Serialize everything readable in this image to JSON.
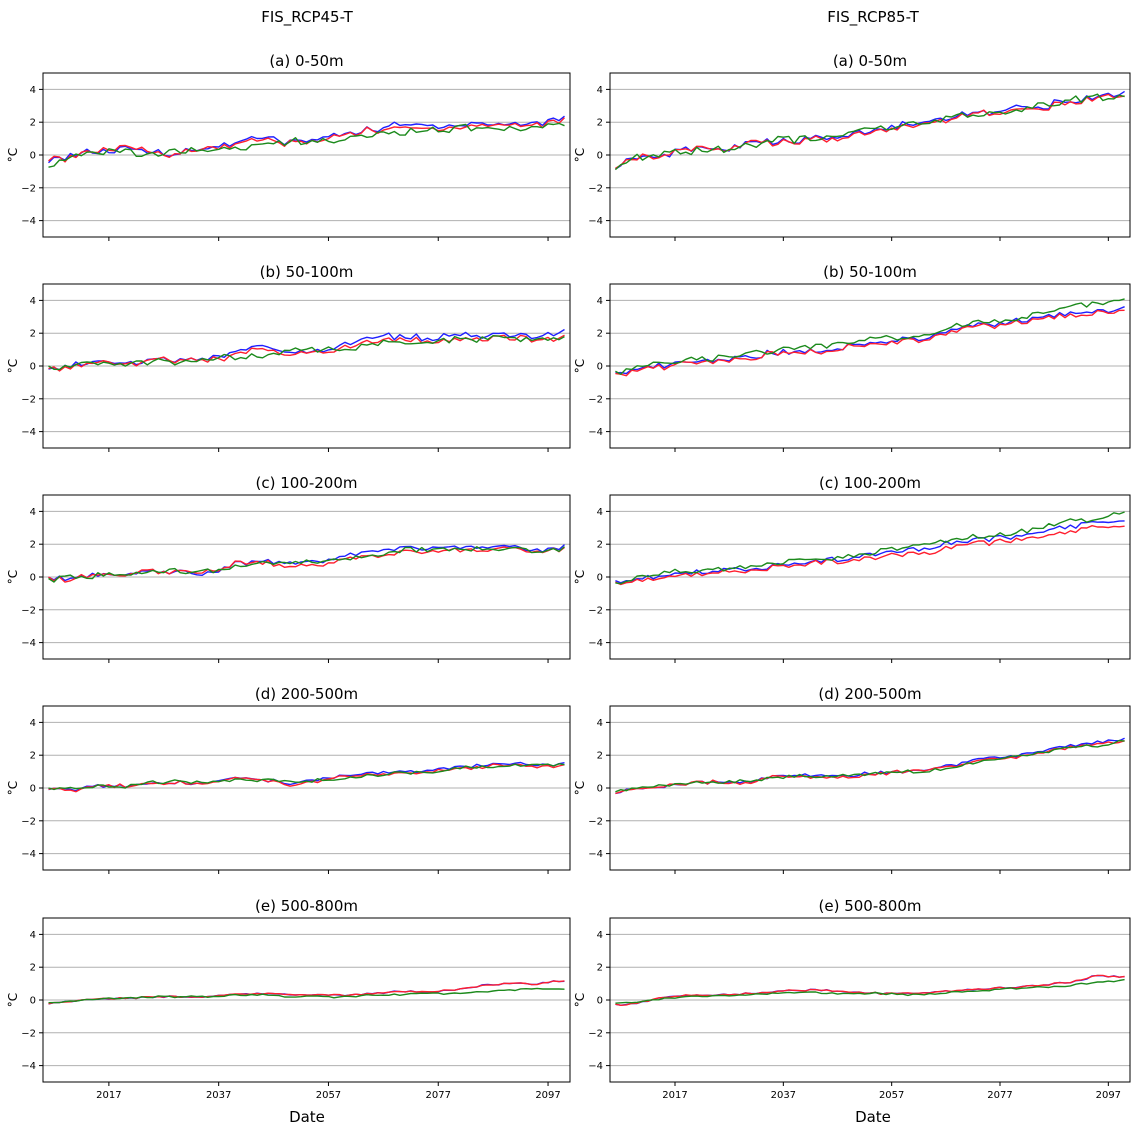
{
  "figure": {
    "columns": [
      "FIS_RCP45-T",
      "FIS_RCP85-T"
    ],
    "xlabel": "Date",
    "ylabel": "°C",
    "xticks": [
      "2017",
      "2037",
      "2057",
      "2077",
      "2097"
    ],
    "yticks": [
      "4",
      "2",
      "0",
      "−2",
      "−4"
    ]
  },
  "colors": {
    "blue": "#1f1fff",
    "red": "#ff1f2f",
    "green": "#1c8a1c"
  },
  "chart_data": [
    {
      "type": "line",
      "title": "(a) 0-50m",
      "column": "FIS_RCP45-T",
      "xlabel": "",
      "ylabel": "°C",
      "xlim": [
        2005,
        2101
      ],
      "ylim": [
        -5,
        5
      ],
      "grid": true,
      "trend": [
        [
          2006,
          -0.4,
          -0.3,
          -0.7
        ],
        [
          2010,
          0.0,
          -0.1,
          -0.1
        ],
        [
          2015,
          0.2,
          0.3,
          0.2
        ],
        [
          2020,
          0.3,
          0.4,
          0.2
        ],
        [
          2025,
          0.2,
          0.2,
          0.1
        ],
        [
          2030,
          0.1,
          0.1,
          0.2
        ],
        [
          2035,
          0.4,
          0.4,
          0.3
        ],
        [
          2040,
          0.8,
          0.7,
          0.5
        ],
        [
          2045,
          1.0,
          0.9,
          0.6
        ],
        [
          2050,
          0.8,
          0.7,
          0.8
        ],
        [
          2055,
          0.9,
          0.8,
          0.8
        ],
        [
          2060,
          1.4,
          1.3,
          1.1
        ],
        [
          2065,
          1.6,
          1.5,
          1.2
        ],
        [
          2070,
          1.8,
          1.6,
          1.4
        ],
        [
          2075,
          1.8,
          1.6,
          1.5
        ],
        [
          2080,
          1.9,
          1.7,
          1.6
        ],
        [
          2085,
          1.9,
          1.8,
          1.6
        ],
        [
          2090,
          1.9,
          1.8,
          1.6
        ],
        [
          2095,
          1.9,
          1.8,
          1.7
        ],
        [
          2100,
          2.3,
          2.2,
          1.8
        ]
      ]
    },
    {
      "type": "line",
      "title": "(a) 0-50m",
      "column": "FIS_RCP85-T",
      "xlabel": "",
      "ylabel": "°C",
      "xlim": [
        2005,
        2101
      ],
      "ylim": [
        -5,
        5
      ],
      "grid": true,
      "trend": [
        [
          2006,
          -0.8,
          -0.7,
          -0.9
        ],
        [
          2010,
          -0.2,
          -0.2,
          -0.1
        ],
        [
          2015,
          0.1,
          0.1,
          0.2
        ],
        [
          2020,
          0.3,
          0.3,
          0.2
        ],
        [
          2025,
          0.4,
          0.4,
          0.3
        ],
        [
          2030,
          0.6,
          0.6,
          0.5
        ],
        [
          2035,
          0.8,
          0.8,
          0.9
        ],
        [
          2040,
          0.9,
          0.9,
          0.9
        ],
        [
          2045,
          1.0,
          0.9,
          1.2
        ],
        [
          2050,
          1.3,
          1.2,
          1.4
        ],
        [
          2055,
          1.6,
          1.5,
          1.7
        ],
        [
          2060,
          1.8,
          1.7,
          1.9
        ],
        [
          2065,
          2.0,
          1.9,
          2.1
        ],
        [
          2070,
          2.4,
          2.3,
          2.4
        ],
        [
          2075,
          2.6,
          2.5,
          2.6
        ],
        [
          2080,
          2.8,
          2.7,
          2.8
        ],
        [
          2085,
          3.0,
          2.9,
          3.1
        ],
        [
          2090,
          3.3,
          3.2,
          3.4
        ],
        [
          2095,
          3.5,
          3.4,
          3.5
        ],
        [
          2100,
          3.8,
          3.6,
          3.6
        ]
      ]
    },
    {
      "type": "line",
      "title": "(b) 50-100m",
      "column": "FIS_RCP45-T",
      "xlabel": "",
      "ylabel": "°C",
      "xlim": [
        2005,
        2101
      ],
      "ylim": [
        -5,
        5
      ],
      "grid": true,
      "trend": [
        [
          2006,
          -0.3,
          -0.3,
          -0.2
        ],
        [
          2010,
          0.0,
          -0.1,
          0.1
        ],
        [
          2015,
          0.3,
          0.3,
          0.3
        ],
        [
          2020,
          0.2,
          0.1,
          0.1
        ],
        [
          2025,
          0.4,
          0.4,
          0.3
        ],
        [
          2030,
          0.3,
          0.3,
          0.3
        ],
        [
          2035,
          0.4,
          0.3,
          0.4
        ],
        [
          2040,
          0.9,
          0.7,
          0.5
        ],
        [
          2045,
          1.2,
          1.0,
          0.6
        ],
        [
          2050,
          0.9,
          0.8,
          1.0
        ],
        [
          2055,
          0.9,
          0.8,
          0.9
        ],
        [
          2060,
          1.4,
          1.2,
          1.1
        ],
        [
          2065,
          1.8,
          1.5,
          1.3
        ],
        [
          2070,
          1.8,
          1.6,
          1.5
        ],
        [
          2075,
          1.7,
          1.5,
          1.4
        ],
        [
          2080,
          1.9,
          1.6,
          1.7
        ],
        [
          2085,
          1.9,
          1.7,
          1.6
        ],
        [
          2090,
          1.9,
          1.7,
          1.7
        ],
        [
          2095,
          1.8,
          1.6,
          1.6
        ],
        [
          2100,
          2.1,
          1.8,
          1.7
        ]
      ]
    },
    {
      "type": "line",
      "title": "(b) 50-100m",
      "column": "FIS_RCP85-T",
      "xlabel": "",
      "ylabel": "°C",
      "xlim": [
        2005,
        2101
      ],
      "ylim": [
        -5,
        5
      ],
      "grid": true,
      "trend": [
        [
          2006,
          -0.5,
          -0.5,
          -0.4
        ],
        [
          2010,
          -0.2,
          -0.3,
          -0.1
        ],
        [
          2015,
          0.1,
          0.0,
          0.2
        ],
        [
          2020,
          0.3,
          0.3,
          0.4
        ],
        [
          2025,
          0.4,
          0.3,
          0.5
        ],
        [
          2030,
          0.5,
          0.4,
          0.7
        ],
        [
          2035,
          0.8,
          0.8,
          0.9
        ],
        [
          2040,
          0.9,
          0.8,
          1.1
        ],
        [
          2045,
          1.0,
          1.0,
          1.2
        ],
        [
          2050,
          1.3,
          1.2,
          1.5
        ],
        [
          2055,
          1.5,
          1.4,
          1.7
        ],
        [
          2060,
          1.6,
          1.5,
          1.8
        ],
        [
          2065,
          1.9,
          1.8,
          2.1
        ],
        [
          2070,
          2.3,
          2.2,
          2.5
        ],
        [
          2075,
          2.5,
          2.4,
          2.7
        ],
        [
          2080,
          2.7,
          2.6,
          2.9
        ],
        [
          2085,
          3.0,
          2.9,
          3.3
        ],
        [
          2090,
          3.3,
          3.1,
          3.7
        ],
        [
          2095,
          3.4,
          3.3,
          3.8
        ],
        [
          2100,
          3.4,
          3.3,
          3.9
        ]
      ]
    },
    {
      "type": "line",
      "title": "(c) 100-200m",
      "column": "FIS_RCP45-T",
      "xlabel": "",
      "ylabel": "°C",
      "xlim": [
        2005,
        2101
      ],
      "ylim": [
        -5,
        5
      ],
      "grid": true,
      "trend": [
        [
          2006,
          -0.1,
          -0.1,
          -0.2
        ],
        [
          2010,
          -0.1,
          -0.2,
          0.0
        ],
        [
          2015,
          0.2,
          0.2,
          0.1
        ],
        [
          2020,
          0.1,
          0.1,
          0.1
        ],
        [
          2025,
          0.4,
          0.4,
          0.3
        ],
        [
          2030,
          0.3,
          0.3,
          0.4
        ],
        [
          2035,
          0.2,
          0.3,
          0.4
        ],
        [
          2040,
          0.8,
          0.8,
          0.6
        ],
        [
          2045,
          1.0,
          0.9,
          0.8
        ],
        [
          2050,
          0.8,
          0.6,
          0.9
        ],
        [
          2055,
          0.9,
          0.7,
          1.0
        ],
        [
          2060,
          1.3,
          1.1,
          1.1
        ],
        [
          2065,
          1.5,
          1.2,
          1.3
        ],
        [
          2070,
          1.8,
          1.5,
          1.6
        ],
        [
          2075,
          1.7,
          1.5,
          1.7
        ],
        [
          2080,
          1.8,
          1.6,
          1.7
        ],
        [
          2085,
          1.8,
          1.6,
          1.8
        ],
        [
          2090,
          1.8,
          1.7,
          1.7
        ],
        [
          2095,
          1.6,
          1.5,
          1.6
        ],
        [
          2100,
          1.8,
          1.7,
          1.7
        ]
      ]
    },
    {
      "type": "line",
      "title": "(c) 100-200m",
      "column": "FIS_RCP85-T",
      "xlabel": "",
      "ylabel": "°C",
      "xlim": [
        2005,
        2101
      ],
      "ylim": [
        -5,
        5
      ],
      "grid": true,
      "trend": [
        [
          2006,
          -0.3,
          -0.4,
          -0.3
        ],
        [
          2010,
          -0.1,
          -0.2,
          -0.1
        ],
        [
          2015,
          0.1,
          0.0,
          0.2
        ],
        [
          2020,
          0.3,
          0.2,
          0.4
        ],
        [
          2025,
          0.4,
          0.3,
          0.5
        ],
        [
          2030,
          0.5,
          0.4,
          0.6
        ],
        [
          2035,
          0.7,
          0.6,
          0.8
        ],
        [
          2040,
          0.9,
          0.8,
          1.0
        ],
        [
          2045,
          1.0,
          0.9,
          1.1
        ],
        [
          2050,
          1.2,
          1.0,
          1.3
        ],
        [
          2055,
          1.4,
          1.2,
          1.6
        ],
        [
          2060,
          1.6,
          1.4,
          1.8
        ],
        [
          2065,
          1.9,
          1.6,
          2.1
        ],
        [
          2070,
          2.2,
          2.0,
          2.4
        ],
        [
          2075,
          2.3,
          2.1,
          2.5
        ],
        [
          2080,
          2.5,
          2.3,
          2.7
        ],
        [
          2085,
          2.8,
          2.5,
          3.0
        ],
        [
          2090,
          3.1,
          2.8,
          3.4
        ],
        [
          2095,
          3.3,
          3.0,
          3.6
        ],
        [
          2100,
          3.4,
          3.1,
          3.9
        ]
      ]
    },
    {
      "type": "line",
      "title": "(d) 200-500m",
      "column": "FIS_RCP45-T",
      "xlabel": "",
      "ylabel": "°C",
      "xlim": [
        2005,
        2101
      ],
      "ylim": [
        -5,
        5
      ],
      "grid": true,
      "trend": [
        [
          2006,
          -0.1,
          -0.1,
          -0.1
        ],
        [
          2010,
          -0.1,
          -0.2,
          0.0
        ],
        [
          2015,
          0.2,
          0.2,
          0.1
        ],
        [
          2020,
          0.1,
          0.1,
          0.1
        ],
        [
          2025,
          0.3,
          0.3,
          0.4
        ],
        [
          2030,
          0.3,
          0.3,
          0.4
        ],
        [
          2035,
          0.2,
          0.2,
          0.3
        ],
        [
          2040,
          0.6,
          0.6,
          0.5
        ],
        [
          2045,
          0.5,
          0.5,
          0.5
        ],
        [
          2050,
          0.3,
          0.2,
          0.4
        ],
        [
          2055,
          0.5,
          0.4,
          0.5
        ],
        [
          2060,
          0.7,
          0.7,
          0.6
        ],
        [
          2065,
          0.9,
          0.8,
          0.8
        ],
        [
          2070,
          1.0,
          0.9,
          0.9
        ],
        [
          2075,
          1.1,
          1.0,
          1.0
        ],
        [
          2080,
          1.2,
          1.1,
          1.2
        ],
        [
          2085,
          1.4,
          1.3,
          1.3
        ],
        [
          2090,
          1.5,
          1.4,
          1.4
        ],
        [
          2095,
          1.4,
          1.3,
          1.4
        ],
        [
          2100,
          1.5,
          1.4,
          1.4
        ]
      ]
    },
    {
      "type": "line",
      "title": "(d) 200-500m",
      "column": "FIS_RCP85-T",
      "xlabel": "",
      "ylabel": "°C",
      "xlim": [
        2005,
        2101
      ],
      "ylim": [
        -5,
        5
      ],
      "grid": true,
      "trend": [
        [
          2006,
          -0.3,
          -0.3,
          -0.2
        ],
        [
          2010,
          -0.1,
          -0.1,
          0.0
        ],
        [
          2015,
          0.1,
          0.1,
          0.1
        ],
        [
          2020,
          0.3,
          0.3,
          0.3
        ],
        [
          2025,
          0.4,
          0.4,
          0.3
        ],
        [
          2030,
          0.4,
          0.3,
          0.4
        ],
        [
          2035,
          0.7,
          0.7,
          0.6
        ],
        [
          2040,
          0.8,
          0.7,
          0.7
        ],
        [
          2045,
          0.7,
          0.6,
          0.7
        ],
        [
          2050,
          0.8,
          0.7,
          0.8
        ],
        [
          2055,
          0.9,
          0.9,
          0.9
        ],
        [
          2060,
          1.0,
          1.0,
          1.0
        ],
        [
          2065,
          1.2,
          1.2,
          1.1
        ],
        [
          2070,
          1.5,
          1.4,
          1.4
        ],
        [
          2075,
          1.8,
          1.7,
          1.7
        ],
        [
          2080,
          2.0,
          1.9,
          1.9
        ],
        [
          2085,
          2.3,
          2.2,
          2.2
        ],
        [
          2090,
          2.6,
          2.5,
          2.4
        ],
        [
          2095,
          2.8,
          2.7,
          2.6
        ],
        [
          2100,
          3.0,
          2.9,
          2.9
        ]
      ]
    },
    {
      "type": "line",
      "title": "(e) 500-800m",
      "column": "FIS_RCP45-T",
      "xlabel": "Date",
      "ylabel": "°C",
      "xlim": [
        2005,
        2101
      ],
      "ylim": [
        -5,
        5
      ],
      "grid": true,
      "trend": [
        [
          2006,
          -0.2,
          -0.2,
          -0.2
        ],
        [
          2010,
          -0.1,
          -0.1,
          -0.1
        ],
        [
          2015,
          0.1,
          0.1,
          0.1
        ],
        [
          2020,
          0.1,
          0.1,
          0.1
        ],
        [
          2025,
          0.2,
          0.2,
          0.2
        ],
        [
          2030,
          0.2,
          0.2,
          0.2
        ],
        [
          2035,
          0.2,
          0.2,
          0.2
        ],
        [
          2040,
          0.4,
          0.4,
          0.3
        ],
        [
          2045,
          0.4,
          0.4,
          0.3
        ],
        [
          2050,
          0.3,
          0.3,
          0.2
        ],
        [
          2055,
          0.3,
          0.3,
          0.2
        ],
        [
          2060,
          0.3,
          0.3,
          0.2
        ],
        [
          2065,
          0.4,
          0.4,
          0.3
        ],
        [
          2070,
          0.5,
          0.5,
          0.3
        ],
        [
          2075,
          0.5,
          0.5,
          0.4
        ],
        [
          2080,
          0.6,
          0.6,
          0.4
        ],
        [
          2085,
          0.9,
          0.9,
          0.5
        ],
        [
          2090,
          1.0,
          1.0,
          0.6
        ],
        [
          2095,
          1.0,
          1.0,
          0.7
        ],
        [
          2100,
          1.2,
          1.2,
          0.7
        ]
      ]
    },
    {
      "type": "line",
      "title": "(e) 500-800m",
      "column": "FIS_RCP85-T",
      "xlabel": "Date",
      "ylabel": "°C",
      "xlim": [
        2005,
        2101
      ],
      "ylim": [
        -5,
        5
      ],
      "grid": true,
      "trend": [
        [
          2006,
          -0.3,
          -0.3,
          -0.2
        ],
        [
          2010,
          -0.2,
          -0.2,
          -0.1
        ],
        [
          2015,
          0.2,
          0.2,
          0.1
        ],
        [
          2020,
          0.3,
          0.3,
          0.2
        ],
        [
          2025,
          0.3,
          0.3,
          0.3
        ],
        [
          2030,
          0.4,
          0.4,
          0.3
        ],
        [
          2035,
          0.5,
          0.5,
          0.4
        ],
        [
          2040,
          0.6,
          0.6,
          0.5
        ],
        [
          2045,
          0.6,
          0.6,
          0.4
        ],
        [
          2050,
          0.5,
          0.5,
          0.4
        ],
        [
          2055,
          0.4,
          0.4,
          0.4
        ],
        [
          2060,
          0.4,
          0.4,
          0.3
        ],
        [
          2065,
          0.5,
          0.5,
          0.4
        ],
        [
          2070,
          0.6,
          0.6,
          0.5
        ],
        [
          2075,
          0.7,
          0.7,
          0.6
        ],
        [
          2080,
          0.8,
          0.8,
          0.7
        ],
        [
          2085,
          0.9,
          0.9,
          0.8
        ],
        [
          2090,
          1.1,
          1.1,
          0.9
        ],
        [
          2095,
          1.5,
          1.5,
          1.1
        ],
        [
          2100,
          1.4,
          1.4,
          1.2
        ]
      ]
    }
  ]
}
